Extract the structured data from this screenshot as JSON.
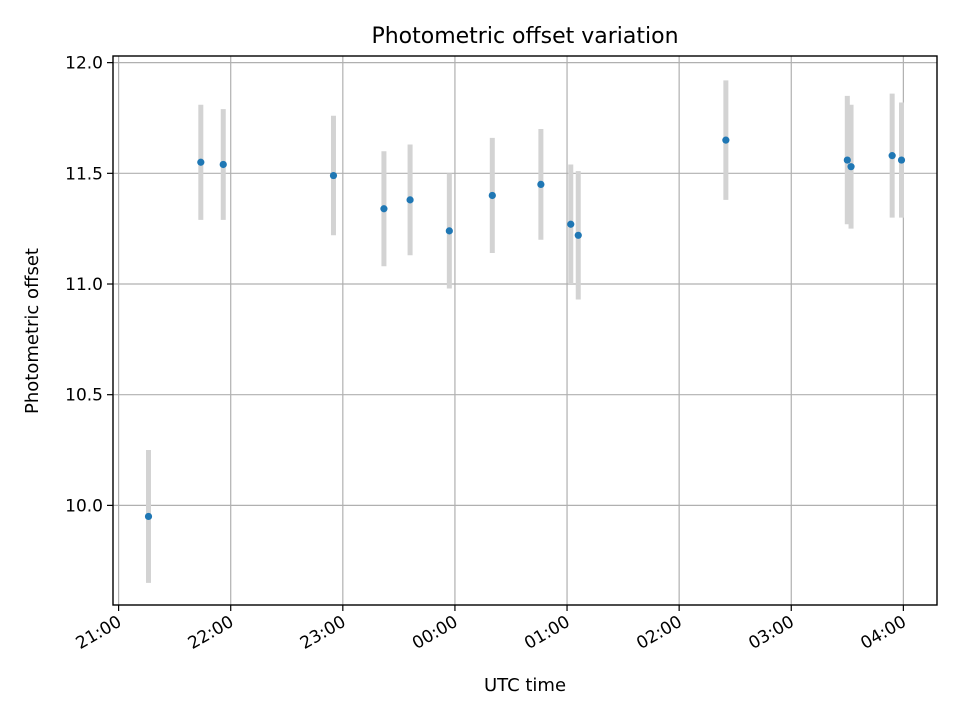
{
  "chart_data": {
    "type": "scatter",
    "title": "Photometric offset variation",
    "xlabel": "UTC time",
    "ylabel": "Photometric offset",
    "x_is_time": true,
    "xlim": [
      "20:57",
      "04:18"
    ],
    "ylim": [
      9.55,
      12.03
    ],
    "x_ticks": [
      "21:00",
      "22:00",
      "23:00",
      "00:00",
      "01:00",
      "02:00",
      "03:00",
      "04:00"
    ],
    "y_ticks": [
      10.0,
      10.5,
      11.0,
      11.5,
      12.0
    ],
    "y_tick_labels": [
      "10.0",
      "10.5",
      "11.0",
      "11.5",
      "12.0"
    ],
    "grid": true,
    "point_color": "#1f77b4",
    "errorbar_color": "#d3d3d3",
    "points": [
      {
        "x": "21:16",
        "y": 9.95,
        "err": 0.3
      },
      {
        "x": "21:44",
        "y": 11.55,
        "err": 0.26
      },
      {
        "x": "21:56",
        "y": 11.54,
        "err": 0.25
      },
      {
        "x": "22:55",
        "y": 11.49,
        "err": 0.27
      },
      {
        "x": "23:22",
        "y": 11.34,
        "err": 0.26
      },
      {
        "x": "23:36",
        "y": 11.38,
        "err": 0.25
      },
      {
        "x": "23:57",
        "y": 11.24,
        "err": 0.26
      },
      {
        "x": "00:20",
        "y": 11.4,
        "err": 0.26
      },
      {
        "x": "00:46",
        "y": 11.45,
        "err": 0.25
      },
      {
        "x": "01:02",
        "y": 11.27,
        "err": 0.27
      },
      {
        "x": "01:06",
        "y": 11.22,
        "err": 0.29
      },
      {
        "x": "02:25",
        "y": 11.65,
        "err": 0.27
      },
      {
        "x": "03:30",
        "y": 11.56,
        "err": 0.29
      },
      {
        "x": "03:32",
        "y": 11.53,
        "err": 0.28
      },
      {
        "x": "03:54",
        "y": 11.58,
        "err": 0.28
      },
      {
        "x": "03:59",
        "y": 11.56,
        "err": 0.26
      }
    ]
  }
}
